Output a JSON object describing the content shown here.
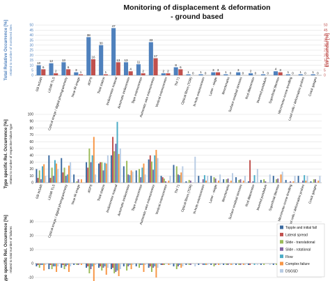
{
  "colors": {
    "blue": "#4f81bd",
    "red": "#c0504d",
    "types": [
      "#3b6aa0",
      "#c0504d",
      "#9bbb59",
      "#8064a2",
      "#4bacc6",
      "#f79646",
      "#b8cce4"
    ],
    "grid": "#d9d9d9"
  },
  "chart_data": [
    {
      "type": "bar",
      "title": "Monitoring of displacement & deformation - ground based",
      "title_lines": [
        "Monitoring of displacement & deformation",
        "- ground based"
      ],
      "ylabel": "Total Relative Occurrence [%]",
      "ylabel_sub": "related to number of monitored sites",
      "y2label": "EW potential [%]",
      "ylim": [
        0,
        50
      ],
      "y2lim": [
        0,
        50
      ],
      "yticks": [
        "0",
        "5",
        "10",
        "15",
        "20",
        "25",
        "30",
        "35",
        "40",
        "45",
        "50"
      ],
      "grid": true,
      "categories": [
        "GB InSAR",
        "LiDAR TLS",
        "Optical image / digital photogrammetry",
        "Near IR image",
        "dGPS",
        "Total station",
        "Inclinometer manual",
        "Automatic inclinometer",
        "Tape extensometer",
        "Automatic wire extensometer",
        "Vertical extensometer",
        "TM 71",
        "Optical fibres (TDR)",
        "In-hole extensometer",
        "Laser - single",
        "Benchmarks",
        "Surface residual stresses",
        "Rod dilatometer",
        "Inverted pendulum",
        "Superficial tiltmeter",
        "Micrometer-screw levelling",
        "Load cells / deformation probes",
        "Crack gauges"
      ],
      "category_labels": [
        "GB InSAR",
        "LiDAR TLS",
        "Optical image / digital photogrammetry",
        "Near IR image",
        "dGPS",
        "Total station",
        "Inclinometer manual",
        "Automatic inclinometer",
        "Tape extensometer",
        "Automatic wire extensometer",
        "Vertical extensometer",
        "TM 71",
        "Optical fibres (TDR)",
        "In-hole extensometer",
        "Laser - single",
        "Benchmarks",
        "Surface residual stresses",
        "Rod dilatometer",
        "Inverted pendulum",
        "Superficial tiltmeter",
        "Micrometer-screw levelling",
        "Load cells / deformation probes",
        "Crack gauges"
      ],
      "series": [
        {
          "role": "occurrence",
          "values": [
            10,
            12,
            13,
            3,
            38,
            30,
            47,
            13,
            11,
            33,
            2,
            8,
            1,
            1,
            3,
            1,
            3,
            2,
            1,
            4,
            1,
            1,
            1
          ],
          "labels": [
            "10",
            "12",
            "13",
            "3",
            "38",
            "30",
            "47",
            "13",
            "11",
            "33",
            "2",
            "8",
            "1",
            "1",
            "3",
            "1",
            "3",
            "2",
            "1",
            "4",
            "1",
            "1",
            "1"
          ]
        },
        {
          "role": "ew_potential",
          "values": [
            6,
            2,
            6,
            1,
            16,
            1,
            13,
            4,
            2,
            17,
            2,
            6,
            0,
            0,
            3,
            0,
            0,
            0,
            0,
            3,
            0,
            0,
            0
          ],
          "labels": [
            "6",
            "2",
            "6",
            "1",
            "16",
            "1",
            "13",
            "4",
            "2",
            "17",
            "2",
            "6",
            "0",
            "0",
            "3",
            "0",
            "0",
            "0",
            "0",
            "3",
            "0",
            "0",
            "0"
          ]
        }
      ]
    },
    {
      "type": "bar",
      "ylabel": "Type specific Rel. Occurrence [%]",
      "ylabel_sub": "related to number of respective failure type",
      "ylim": [
        0,
        100
      ],
      "yticks": [
        "0",
        "10",
        "20",
        "30",
        "40",
        "50",
        "60",
        "70",
        "80",
        "90",
        "100"
      ],
      "grid": true,
      "series": [
        {
          "name": "Topple and initial fall",
          "values": [
            20,
            40,
            36,
            12,
            30,
            28,
            40,
            24,
            18,
            34,
            10,
            26,
            2,
            10,
            10,
            5,
            8,
            2,
            4,
            10,
            4,
            10,
            2
          ]
        },
        {
          "name": "Lateral spread",
          "values": [
            7,
            7,
            15,
            0,
            22,
            30,
            67,
            0,
            0,
            40,
            8,
            0,
            0,
            0,
            0,
            0,
            0,
            33,
            0,
            0,
            0,
            0,
            0
          ]
        },
        {
          "name": "Slide - translational",
          "values": [
            18,
            22,
            22,
            2,
            50,
            30,
            46,
            32,
            20,
            31,
            6,
            24,
            4,
            0,
            8,
            5,
            4,
            0,
            5,
            5,
            0,
            0,
            5
          ]
        },
        {
          "name": "Slide - rotational",
          "values": [
            5,
            10,
            10,
            5,
            30,
            18,
            57,
            12,
            8,
            19,
            2,
            12,
            3,
            5,
            6,
            6,
            5,
            2,
            2,
            6,
            2,
            3,
            5
          ]
        },
        {
          "name": "Flow",
          "values": [
            24,
            33,
            12,
            0,
            40,
            29,
            89,
            11,
            22,
            40,
            0,
            11,
            0,
            11,
            0,
            0,
            0,
            11,
            0,
            0,
            0,
            11,
            0
          ]
        },
        {
          "name": "Complex failure",
          "values": [
            27,
            28,
            25,
            5,
            67,
            28,
            42,
            18,
            28,
            48,
            3,
            15,
            0,
            3,
            3,
            3,
            3,
            0,
            0,
            12,
            2,
            3,
            3
          ]
        },
        {
          "name": "DSGSD",
          "values": [
            10,
            20,
            30,
            0,
            12,
            40,
            50,
            16,
            12,
            36,
            10,
            24,
            38,
            10,
            12,
            14,
            10,
            20,
            12,
            16,
            10,
            10,
            10
          ]
        }
      ]
    },
    {
      "type": "bar",
      "ylabel": "Type specific Rel. Occurrence [%]",
      "ylabel_sub": "related to total number of failures",
      "ylim": [
        -10,
        30
      ],
      "yticks": [
        "-10",
        "0",
        "10",
        "20",
        "30"
      ],
      "grid": true,
      "legend_position": "bottom-right",
      "series": [
        {
          "name": "Topple and initial fall",
          "values": [
            -2,
            -4,
            -3,
            -1,
            -3,
            -3,
            -4,
            -2,
            -2,
            -3,
            -1,
            -2,
            -1,
            -1,
            -1,
            -1,
            -1,
            -1,
            -1,
            -1,
            -1,
            -1,
            -1
          ]
        },
        {
          "name": "Lateral spread",
          "values": [
            -1,
            -1,
            -1,
            0,
            -2,
            -2,
            -3,
            0,
            0,
            -2,
            -1,
            0,
            0,
            0,
            0,
            0,
            0,
            -1,
            0,
            0,
            0,
            0,
            0
          ]
        },
        {
          "name": "Slide - translational",
          "values": [
            -3,
            -4,
            -4,
            -1,
            -7,
            -5,
            -7,
            -5,
            -3,
            -6,
            -1,
            -4,
            -1,
            0,
            -2,
            -1,
            -1,
            0,
            -1,
            -1,
            0,
            0,
            -1
          ]
        },
        {
          "name": "Slide - rotational",
          "values": [
            -1,
            -2,
            -2,
            -1,
            -4,
            -3,
            -6,
            -2,
            -1,
            -3,
            0,
            -2,
            -1,
            -1,
            -1,
            -1,
            -1,
            0,
            0,
            -1,
            0,
            -1,
            -1
          ]
        },
        {
          "name": "Flow",
          "values": [
            -1,
            -2,
            -1,
            0,
            -2,
            -2,
            -5,
            -1,
            -1,
            -2,
            0,
            -1,
            0,
            -1,
            0,
            0,
            0,
            -1,
            0,
            0,
            0,
            -1,
            0
          ]
        },
        {
          "name": "Complex failure",
          "values": [
            -5,
            -6,
            -6,
            -1,
            -13,
            -8,
            -9,
            -4,
            -6,
            -10,
            -1,
            -3,
            0,
            -1,
            -1,
            -1,
            -1,
            0,
            0,
            -3,
            0,
            -1,
            -1
          ]
        },
        {
          "name": "DSGSD",
          "values": [
            -1,
            -2,
            -2,
            0,
            -1,
            -3,
            -4,
            -1,
            -1,
            -3,
            -1,
            -2,
            -2,
            -1,
            -1,
            -1,
            -1,
            -1,
            -1,
            -1,
            -1,
            -1,
            -1
          ]
        }
      ]
    }
  ]
}
